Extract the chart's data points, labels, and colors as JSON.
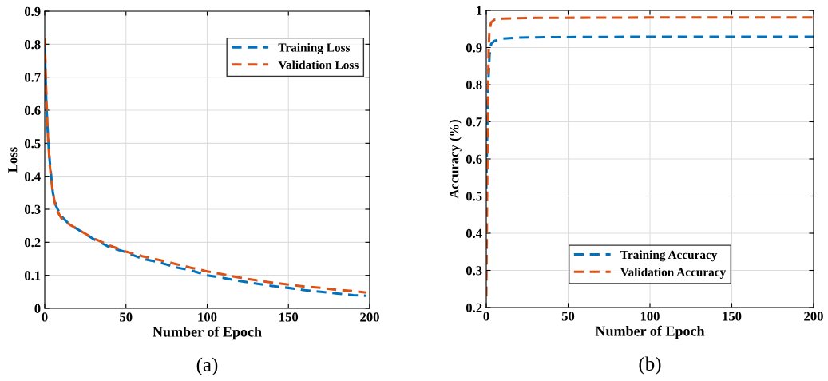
{
  "chart_data": [
    {
      "type": "line",
      "xlabel": "Number of Epoch",
      "ylabel": "Loss",
      "annotations": [
        "(a)"
      ],
      "xlim": [
        0,
        200
      ],
      "xticks": [
        0,
        50,
        100,
        150,
        200
      ],
      "ylim": [
        0,
        0.9
      ],
      "yticks": [
        0,
        0.1,
        0.2,
        0.3,
        0.4,
        0.5,
        0.6,
        0.7,
        0.8,
        0.9
      ],
      "grid": true,
      "legend": "top right",
      "line_style": "dashed",
      "marker": "none",
      "series": [
        {
          "name": "Training Loss",
          "color": "#0072bd",
          "x": [
            0,
            1,
            2,
            3,
            4,
            5,
            7,
            10,
            15,
            20,
            25,
            30,
            40,
            50,
            60,
            70,
            80,
            90,
            100,
            110,
            120,
            130,
            140,
            150,
            160,
            170,
            180,
            190,
            198
          ],
          "values": [
            0.8,
            0.62,
            0.52,
            0.45,
            0.4,
            0.35,
            0.31,
            0.28,
            0.255,
            0.24,
            0.225,
            0.21,
            0.185,
            0.17,
            0.15,
            0.14,
            0.125,
            0.115,
            0.1,
            0.092,
            0.083,
            0.075,
            0.068,
            0.062,
            0.055,
            0.05,
            0.045,
            0.04,
            0.038
          ]
        },
        {
          "name": "Validation Loss",
          "color": "#d95319",
          "x": [
            0,
            1,
            2,
            3,
            4,
            5,
            7,
            10,
            15,
            20,
            30,
            40,
            50,
            60,
            70,
            80,
            90,
            100,
            110,
            120,
            130,
            140,
            150,
            160,
            170,
            180,
            190,
            198
          ],
          "values": [
            0.82,
            0.64,
            0.52,
            0.44,
            0.39,
            0.35,
            0.3,
            0.275,
            0.255,
            0.24,
            0.212,
            0.19,
            0.172,
            0.158,
            0.147,
            0.135,
            0.123,
            0.112,
            0.103,
            0.093,
            0.085,
            0.078,
            0.072,
            0.066,
            0.062,
            0.056,
            0.052,
            0.048
          ]
        }
      ]
    },
    {
      "type": "line",
      "xlabel": "Number of Epoch",
      "ylabel": "Accuracy (%)",
      "annotations": [
        "(b)"
      ],
      "xlim": [
        0,
        200
      ],
      "xticks": [
        0,
        50,
        100,
        150,
        200
      ],
      "ylim": [
        0.2,
        1
      ],
      "yticks": [
        0.2,
        0.3,
        0.4,
        0.5,
        0.6,
        0.7,
        0.8,
        0.9,
        1
      ],
      "grid": true,
      "legend": "bottom",
      "line_style": "dashed",
      "marker": "none",
      "series": [
        {
          "name": "Training Accuracy",
          "color": "#0072bd",
          "x": [
            0,
            0.5,
            1,
            2,
            3,
            5,
            10,
            20,
            40,
            100,
            200
          ],
          "values": [
            0.52,
            0.65,
            0.78,
            0.88,
            0.91,
            0.918,
            0.924,
            0.927,
            0.928,
            0.929,
            0.929
          ]
        },
        {
          "name": "Validation Accuracy",
          "color": "#d95319",
          "x": [
            0,
            0.5,
            1,
            1.5,
            2,
            3,
            5,
            10,
            30,
            100,
            200
          ],
          "values": [
            0.23,
            0.5,
            0.75,
            0.9,
            0.95,
            0.968,
            0.975,
            0.978,
            0.98,
            0.981,
            0.981
          ]
        }
      ]
    }
  ]
}
